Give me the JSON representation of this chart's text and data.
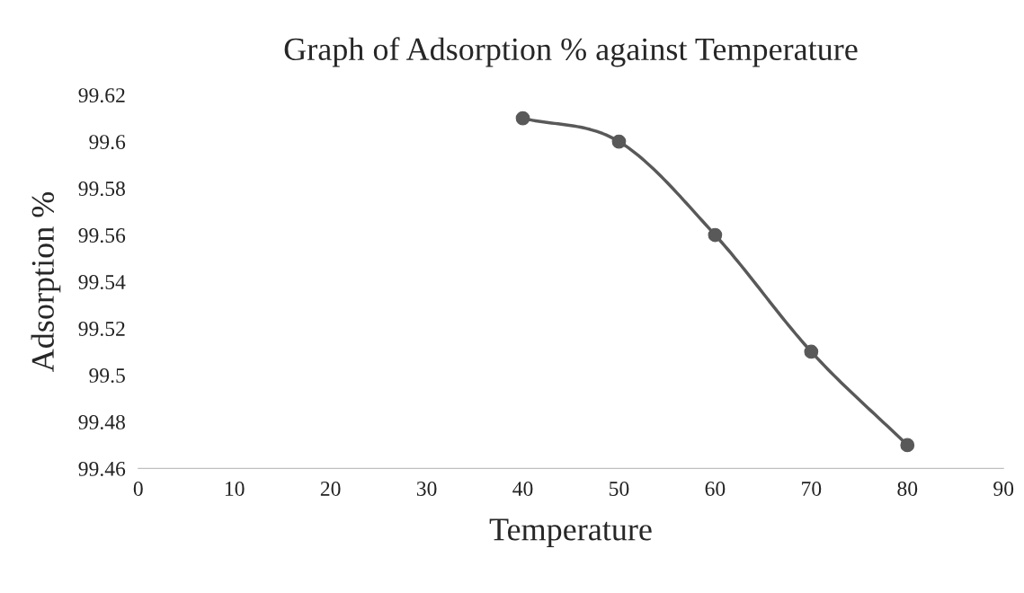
{
  "chart_data": {
    "type": "line",
    "title": "Graph of Adsorption % against Temperature",
    "xlabel": "Temperature",
    "ylabel": "Adsorption %",
    "x": [
      40,
      50,
      60,
      70,
      80
    ],
    "series": [
      {
        "color": "#595959",
        "values": [
          99.61,
          99.6,
          99.56,
          99.51,
          99.47
        ]
      }
    ],
    "xlim": [
      0,
      90
    ],
    "xticks": [
      0,
      10,
      20,
      30,
      40,
      50,
      60,
      70,
      80,
      90
    ],
    "ylim": [
      99.46,
      99.62
    ],
    "yticks": [
      99.46,
      99.48,
      99.5,
      99.52,
      99.54,
      99.56,
      99.58,
      99.6,
      99.62
    ],
    "marker": "circle",
    "line_style": "solid"
  }
}
